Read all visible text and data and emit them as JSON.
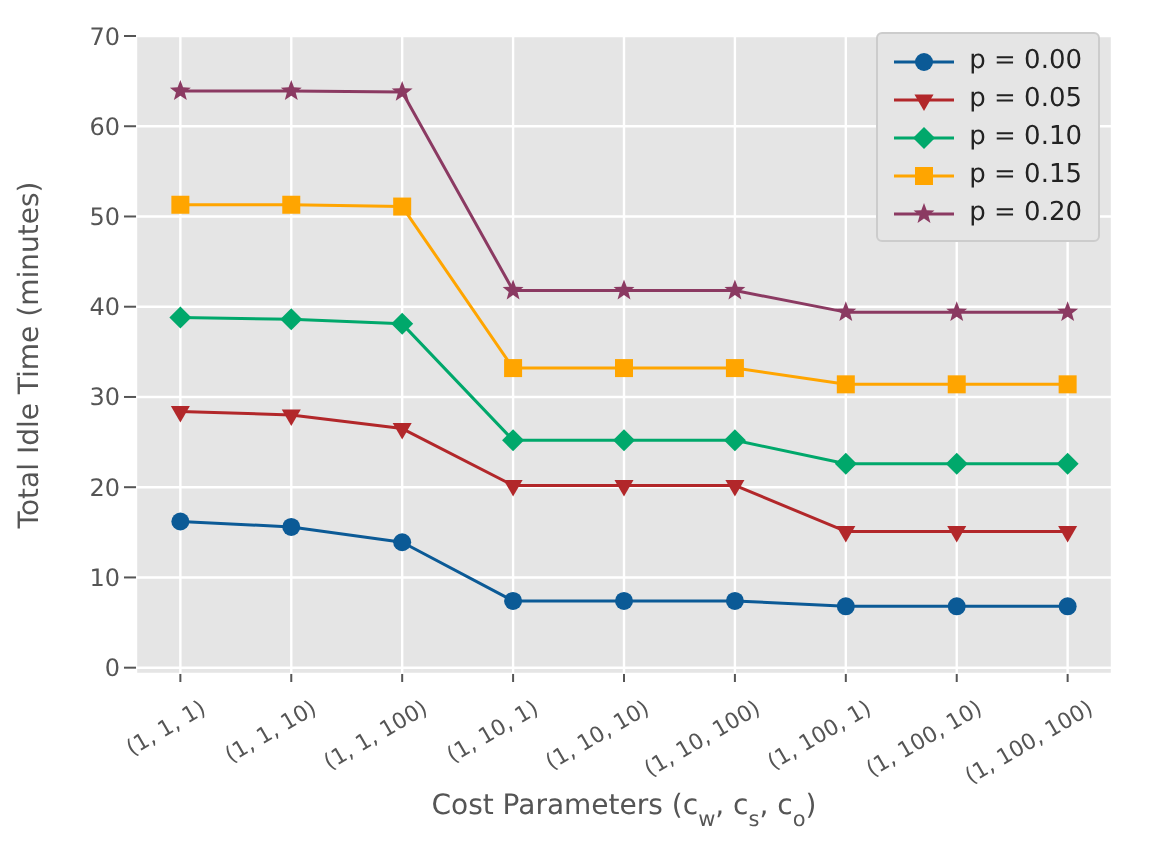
{
  "chart_data": {
    "type": "line",
    "xlabel": "Cost Parameters (c$_{w}$, c$_{s}$, c$_{o}$)",
    "ylabel": "Total Idle Time (minutes)",
    "categories": [
      "(1, 1, 1)",
      "(1, 1, 10)",
      "(1, 1, 100)",
      "(1, 10, 1)",
      "(1, 10, 10)",
      "(1, 10, 100)",
      "(1, 100, 1)",
      "(1, 100, 10)",
      "(1, 100, 100)"
    ],
    "series": [
      {
        "name": "p = 0.00",
        "color": "#0b5a96",
        "marker": "circle",
        "values": [
          16.2,
          15.6,
          13.9,
          7.4,
          7.4,
          7.4,
          6.8,
          6.8,
          6.8
        ]
      },
      {
        "name": "p = 0.05",
        "color": "#b2272a",
        "marker": "triangle",
        "values": [
          28.4,
          28.0,
          26.5,
          20.2,
          20.2,
          20.2,
          15.1,
          15.1,
          15.1
        ]
      },
      {
        "name": "p = 0.10",
        "color": "#00a86b",
        "marker": "diamond",
        "values": [
          38.8,
          38.6,
          38.1,
          25.2,
          25.2,
          25.2,
          22.6,
          22.6,
          22.6
        ]
      },
      {
        "name": "p = 0.15",
        "color": "#ffa500",
        "marker": "square",
        "values": [
          51.3,
          51.3,
          51.1,
          33.2,
          33.2,
          33.2,
          31.4,
          31.4,
          31.4
        ]
      },
      {
        "name": "p = 0.20",
        "color": "#8b3a62",
        "marker": "star",
        "values": [
          63.9,
          63.9,
          63.8,
          41.8,
          41.8,
          41.8,
          39.4,
          39.4,
          39.4
        ]
      }
    ],
    "ylim": [
      -0.7,
      70
    ],
    "yticks": [
      0,
      10,
      20,
      30,
      40,
      50,
      60,
      70
    ],
    "grid": true,
    "legend": "top right",
    "line_style": "solid"
  }
}
